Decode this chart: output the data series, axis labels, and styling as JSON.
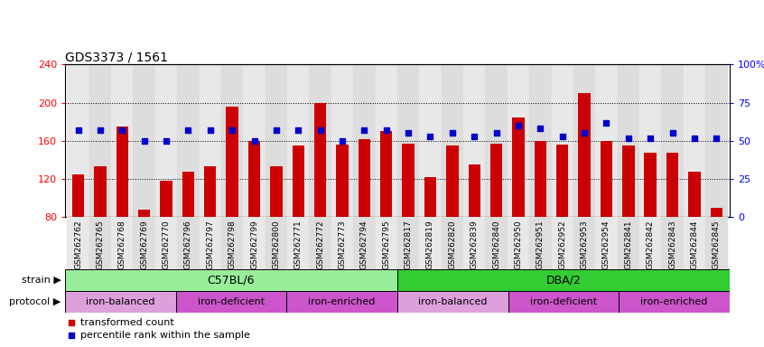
{
  "title": "GDS3373 / 1561",
  "samples": [
    "GSM262762",
    "GSM262765",
    "GSM262768",
    "GSM262769",
    "GSM262770",
    "GSM262796",
    "GSM262797",
    "GSM262798",
    "GSM262799",
    "GSM262800",
    "GSM262771",
    "GSM262772",
    "GSM262773",
    "GSM262794",
    "GSM262795",
    "GSM262817",
    "GSM262819",
    "GSM262820",
    "GSM262839",
    "GSM262840",
    "GSM262950",
    "GSM262951",
    "GSM262952",
    "GSM262953",
    "GSM262954",
    "GSM262841",
    "GSM262842",
    "GSM262843",
    "GSM262844",
    "GSM262845"
  ],
  "bar_values": [
    125,
    133,
    175,
    88,
    118,
    128,
    133,
    196,
    160,
    133,
    155,
    200,
    156,
    162,
    170,
    157,
    122,
    155,
    135,
    157,
    185,
    160,
    156,
    210,
    160,
    155,
    148,
    148,
    128,
    90
  ],
  "dot_values": [
    57,
    57,
    57,
    50,
    50,
    57,
    57,
    57,
    50,
    57,
    57,
    57,
    50,
    57,
    57,
    55,
    53,
    55,
    53,
    55,
    60,
    58,
    53,
    55,
    62,
    52,
    52,
    55,
    52,
    52
  ],
  "ylim_left": [
    80,
    240
  ],
  "ylim_right": [
    0,
    100
  ],
  "yticks_left": [
    80,
    120,
    160,
    200,
    240
  ],
  "yticks_right": [
    0,
    25,
    50,
    75,
    100
  ],
  "ytick_labels_right": [
    "0",
    "25",
    "50",
    "75",
    "100%"
  ],
  "bar_color": "#CC0000",
  "dot_color": "#0000CC",
  "bar_bottom": 80,
  "strain_groups": [
    {
      "label": "C57BL/6",
      "start": 0,
      "end": 15,
      "color": "#99EE99"
    },
    {
      "label": "DBA/2",
      "start": 15,
      "end": 30,
      "color": "#33CC33"
    }
  ],
  "protocol_groups": [
    {
      "label": "iron-balanced",
      "start": 0,
      "end": 5,
      "color": "#DDA0DD"
    },
    {
      "label": "iron-deficient",
      "start": 5,
      "end": 10,
      "color": "#CC55CC"
    },
    {
      "label": "iron-enriched",
      "start": 10,
      "end": 15,
      "color": "#CC55CC"
    },
    {
      "label": "iron-balanced",
      "start": 15,
      "end": 20,
      "color": "#DDA0DD"
    },
    {
      "label": "iron-deficient",
      "start": 20,
      "end": 25,
      "color": "#CC55CC"
    },
    {
      "label": "iron-enriched",
      "start": 25,
      "end": 30,
      "color": "#CC55CC"
    }
  ],
  "legend_items": [
    {
      "label": "transformed count",
      "color": "#CC0000"
    },
    {
      "label": "percentile rank within the sample",
      "color": "#0000CC"
    }
  ],
  "fig_width": 8.46,
  "fig_height": 3.84,
  "dpi": 100
}
